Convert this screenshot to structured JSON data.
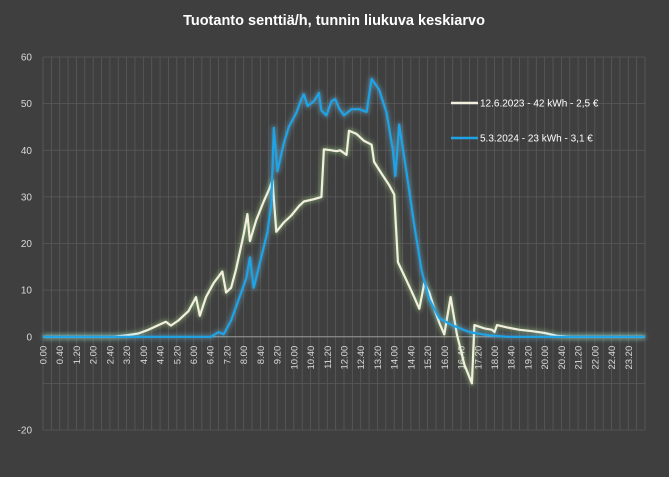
{
  "chart_data": {
    "type": "line",
    "title": "Tuotanto senttiä/h, tunnin liukuva keskiarvo",
    "xlabel": "",
    "ylabel": "",
    "ylim": [
      -20,
      60
    ],
    "yticks": [
      60,
      50,
      40,
      30,
      20,
      10,
      0,
      -20
    ],
    "xticks": [
      "0.00",
      "0.40",
      "1.20",
      "2.00",
      "2.40",
      "3.20",
      "4.00",
      "4.40",
      "5.20",
      "6.00",
      "6.40",
      "7.20",
      "8.00",
      "8.40",
      "9.20",
      "10.00",
      "10.40",
      "11.20",
      "12.00",
      "12.40",
      "13.20",
      "14.00",
      "14.40",
      "15.20",
      "16.00",
      "16.40",
      "17.20",
      "18.00",
      "18.40",
      "19.20",
      "20.00",
      "20.40",
      "21.20",
      "22.00",
      "22.40",
      "23.20"
    ],
    "grid": true,
    "legend_position": "right",
    "series": [
      {
        "name": "12.6.2023 - 42 kWh - 2,5 €",
        "color": "#f3efdf",
        "glow": "#bfff9a",
        "points": [
          [
            0,
            0
          ],
          [
            2.8,
            0
          ],
          [
            3.3,
            0.3
          ],
          [
            3.8,
            0.7
          ],
          [
            4.2,
            1.5
          ],
          [
            4.6,
            2.5
          ],
          [
            4.9,
            3.2
          ],
          [
            5.1,
            2.4
          ],
          [
            5.4,
            3.5
          ],
          [
            5.8,
            5.5
          ],
          [
            6.1,
            8.5
          ],
          [
            6.25,
            4.5
          ],
          [
            6.5,
            8.5
          ],
          [
            6.8,
            11.5
          ],
          [
            7.15,
            14.0
          ],
          [
            7.3,
            9.5
          ],
          [
            7.5,
            10.5
          ],
          [
            7.7,
            14.5
          ],
          [
            8.0,
            22.0
          ],
          [
            8.15,
            26.3
          ],
          [
            8.25,
            20.5
          ],
          [
            8.5,
            25.0
          ],
          [
            8.8,
            29.0
          ],
          [
            9.0,
            31.5
          ],
          [
            9.15,
            33.5
          ],
          [
            9.3,
            22.5
          ],
          [
            9.6,
            24.5
          ],
          [
            9.9,
            26.0
          ],
          [
            10.2,
            28.0
          ],
          [
            10.4,
            29.0
          ],
          [
            10.8,
            29.5
          ],
          [
            11.1,
            30.0
          ],
          [
            11.2,
            40.2
          ],
          [
            11.5,
            40.0
          ],
          [
            11.7,
            39.8
          ],
          [
            11.85,
            40.0
          ],
          [
            12.1,
            39.0
          ],
          [
            12.2,
            44.2
          ],
          [
            12.5,
            43.5
          ],
          [
            12.8,
            42.0
          ],
          [
            13.1,
            41.2
          ],
          [
            13.2,
            37.5
          ],
          [
            13.5,
            35.0
          ],
          [
            13.8,
            32.5
          ],
          [
            14.0,
            30.5
          ],
          [
            14.15,
            16.0
          ],
          [
            14.5,
            12.0
          ],
          [
            14.8,
            8.5
          ],
          [
            15.0,
            6.0
          ],
          [
            15.2,
            11.5
          ],
          [
            15.4,
            9.5
          ],
          [
            15.6,
            6.0
          ],
          [
            15.8,
            3.0
          ],
          [
            16.0,
            0.5
          ],
          [
            16.25,
            8.5
          ],
          [
            16.5,
            0.5
          ],
          [
            16.8,
            -6.0
          ],
          [
            17.1,
            -10.0
          ],
          [
            17.2,
            2.5
          ],
          [
            17.6,
            1.8
          ],
          [
            17.9,
            1.5
          ],
          [
            18.0,
            1.0
          ],
          [
            18.1,
            2.5
          ],
          [
            18.5,
            2.0
          ],
          [
            19.0,
            1.5
          ],
          [
            19.5,
            1.2
          ],
          [
            20.0,
            0.8
          ],
          [
            20.5,
            0.2
          ],
          [
            21.0,
            0
          ],
          [
            24,
            0
          ]
        ]
      },
      {
        "name": "5.3.2024 - 23 kWh - 3,1 €",
        "color": "#1ea3e6",
        "glow": "#73d2ff",
        "points": [
          [
            0,
            0
          ],
          [
            6.7,
            0
          ],
          [
            7.0,
            1.0
          ],
          [
            7.2,
            0.5
          ],
          [
            7.5,
            3.5
          ],
          [
            7.8,
            8.0
          ],
          [
            8.1,
            12.5
          ],
          [
            8.25,
            17.0
          ],
          [
            8.4,
            10.5
          ],
          [
            8.7,
            17.0
          ],
          [
            8.95,
            22.5
          ],
          [
            9.1,
            28.5
          ],
          [
            9.2,
            44.8
          ],
          [
            9.35,
            35.5
          ],
          [
            9.6,
            41.5
          ],
          [
            9.8,
            45.0
          ],
          [
            10.1,
            48.0
          ],
          [
            10.3,
            51.0
          ],
          [
            10.4,
            52.0
          ],
          [
            10.55,
            49.5
          ],
          [
            10.8,
            50.5
          ],
          [
            11.0,
            52.3
          ],
          [
            11.1,
            48.5
          ],
          [
            11.3,
            47.5
          ],
          [
            11.5,
            50.5
          ],
          [
            11.65,
            51.0
          ],
          [
            11.8,
            49.0
          ],
          [
            12.0,
            47.5
          ],
          [
            12.3,
            48.8
          ],
          [
            12.6,
            48.8
          ],
          [
            12.9,
            48.2
          ],
          [
            13.1,
            55.3
          ],
          [
            13.4,
            53.0
          ],
          [
            13.7,
            48.0
          ],
          [
            13.95,
            40.0
          ],
          [
            14.05,
            34.5
          ],
          [
            14.2,
            45.5
          ],
          [
            14.5,
            35.0
          ],
          [
            14.8,
            24.0
          ],
          [
            15.1,
            14.0
          ],
          [
            15.4,
            8.0
          ],
          [
            15.8,
            4.0
          ],
          [
            16.3,
            2.5
          ],
          [
            17.0,
            1.0
          ],
          [
            17.8,
            0.3
          ],
          [
            18.5,
            0
          ],
          [
            24,
            0
          ]
        ]
      }
    ]
  }
}
